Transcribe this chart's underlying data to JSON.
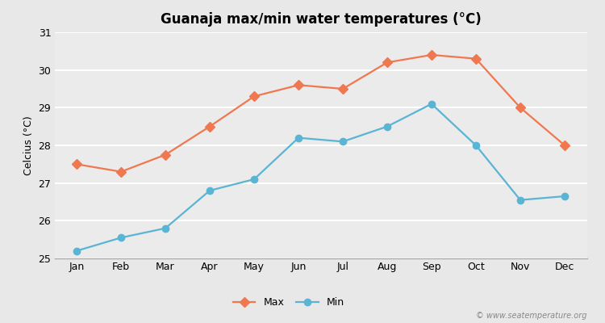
{
  "months": [
    "Jan",
    "Feb",
    "Mar",
    "Apr",
    "May",
    "Jun",
    "Jul",
    "Aug",
    "Sep",
    "Oct",
    "Nov",
    "Dec"
  ],
  "max_temps": [
    27.5,
    27.3,
    27.75,
    28.5,
    29.3,
    29.6,
    29.5,
    30.2,
    30.4,
    30.3,
    29.0,
    28.0
  ],
  "min_temps": [
    25.2,
    25.55,
    25.8,
    26.8,
    27.1,
    28.2,
    28.1,
    28.5,
    29.1,
    28.0,
    26.55,
    26.65
  ],
  "max_color": "#f07850",
  "min_color": "#5ab4d4",
  "title": "Guanaja max/min water temperatures (°C)",
  "ylabel": "Celcius (°C)",
  "ylim": [
    25,
    31
  ],
  "yticks": [
    25,
    26,
    27,
    28,
    29,
    30,
    31
  ],
  "bg_color": "#e8e8e8",
  "plot_bg_color": "#ebebeb",
  "grid_color": "#ffffff",
  "watermark": "© www.seatemperature.org",
  "legend_max": "Max",
  "legend_min": "Min"
}
